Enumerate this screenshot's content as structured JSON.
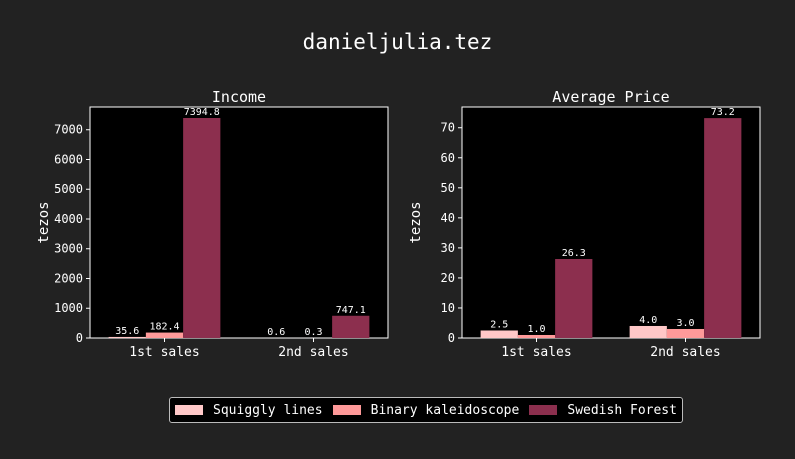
{
  "figure": {
    "title": "danieljulia.tez"
  },
  "series_colors": [
    "#ffc8c8",
    "#ff9a9a",
    "#8c2f4e"
  ],
  "chart_data": [
    {
      "type": "bar",
      "title": "Income",
      "ylabel": "tezos",
      "xlabel": "",
      "categories": [
        "1st sales",
        "2nd sales"
      ],
      "ylim": [
        0,
        7764.5
      ],
      "yticks": [
        0,
        1000,
        2000,
        3000,
        4000,
        5000,
        6000,
        7000
      ],
      "series": [
        {
          "name": "Squiggly lines",
          "values": [
            35.6,
            0.6
          ],
          "labels": [
            "35.6",
            "0.6"
          ]
        },
        {
          "name": "Binary kaleidoscope",
          "values": [
            182.4,
            0.3
          ],
          "labels": [
            "182.4",
            "0.3"
          ]
        },
        {
          "name": "Swedish Forest",
          "values": [
            7394.8,
            747.1
          ],
          "labels": [
            "7394.8",
            "747.1"
          ]
        }
      ]
    },
    {
      "type": "bar",
      "title": "Average Price",
      "ylabel": "tezos",
      "xlabel": "",
      "categories": [
        "1st sales",
        "2nd sales"
      ],
      "ylim": [
        0,
        76.9
      ],
      "yticks": [
        0,
        10,
        20,
        30,
        40,
        50,
        60,
        70
      ],
      "series": [
        {
          "name": "Squiggly lines",
          "values": [
            2.5,
            4.0
          ],
          "labels": [
            "2.5",
            "4.0"
          ]
        },
        {
          "name": "Binary kaleidoscope",
          "values": [
            1.0,
            3.0
          ],
          "labels": [
            "1.0",
            "3.0"
          ]
        },
        {
          "name": "Swedish Forest",
          "values": [
            26.3,
            73.2
          ],
          "labels": [
            "26.3",
            "73.2"
          ]
        }
      ]
    }
  ],
  "legend": {
    "items": [
      "Squiggly lines",
      "Binary kaleidoscope",
      "Swedish Forest"
    ]
  }
}
